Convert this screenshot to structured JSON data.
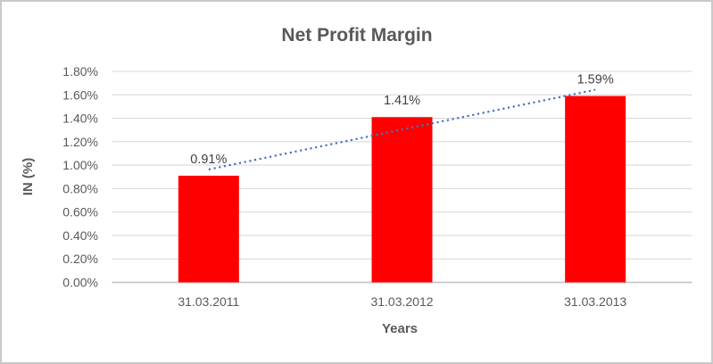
{
  "chart_data": {
    "type": "bar",
    "title": "Net Profit Margin",
    "xlabel": "Years",
    "ylabel": "IN (%)",
    "categories": [
      "31.03.2011",
      "31.03.2012",
      "31.03.2013"
    ],
    "values": [
      0.91,
      1.41,
      1.59
    ],
    "data_labels": [
      "0.91%",
      "1.41%",
      "1.59%"
    ],
    "ylim": [
      0,
      1.8
    ],
    "ytick_step": 0.2,
    "ytick_labels": [
      "0.00%",
      "0.20%",
      "0.40%",
      "0.60%",
      "0.80%",
      "1.00%",
      "1.20%",
      "1.40%",
      "1.60%",
      "1.80%"
    ],
    "grid": true,
    "legend": false,
    "trendline": {
      "type": "linear",
      "style": "dotted"
    },
    "colors": {
      "bar": "#FF0000",
      "trendline": "#4472C4",
      "gridline": "#D9D9D9",
      "axis_line": "#C6C6C6",
      "tick_text": "#595959",
      "data_label_text": "#404040",
      "title_text": "#595959",
      "axis_title_text": "#595959",
      "background": "#FFFFFF",
      "border": "#C9C9C9"
    }
  }
}
